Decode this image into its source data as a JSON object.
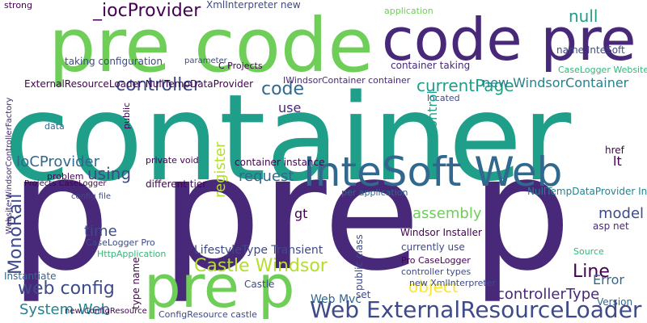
{
  "words": [
    "container",
    "pre code",
    "code pre",
    "p pre p",
    "InteSoft Web",
    "pre p",
    "Web ExternalResourceLoader",
    "_iocProvider",
    "XmlInterpreter new",
    "controller",
    "code",
    "currentPage",
    "null",
    "new WindsorContainer",
    "Castle Windsor",
    "web config",
    "System Web",
    "object",
    "Line",
    "controllerType",
    "assembly",
    "model",
    "Error",
    "MonoRail",
    "IoCProvider",
    "using",
    "request",
    "register",
    "time",
    "gt",
    "LifestyleType Transient",
    "use",
    "ExternalResourceLoader NullTempDataProvider",
    "CaseLogger Pro",
    "HttpApplication",
    "Instantiate",
    "strong",
    "taking configuration",
    "C Projects",
    "container taking",
    "CaseLogger Website",
    "IWindsorContainer container",
    "located",
    "Control",
    "container instance",
    "private void",
    "Projects CaseLogger",
    "different tier",
    "problem",
    "config file",
    "new ConfigResource",
    "Windsor Installer",
    "currently use",
    "Pro CaseLogger",
    "controller types",
    "new XmlInterpreter",
    "ConfigResource castle",
    "Web Mvc",
    "asp net",
    "name InteSoft",
    "Website WindsorControllerFactory",
    "NullTempDataProvider InteSoft",
    "per application",
    "parameter",
    "data",
    "public",
    "lt",
    "href",
    "type name",
    "set",
    "Version",
    "Castle",
    "application",
    "Source",
    "public class"
  ]
}
